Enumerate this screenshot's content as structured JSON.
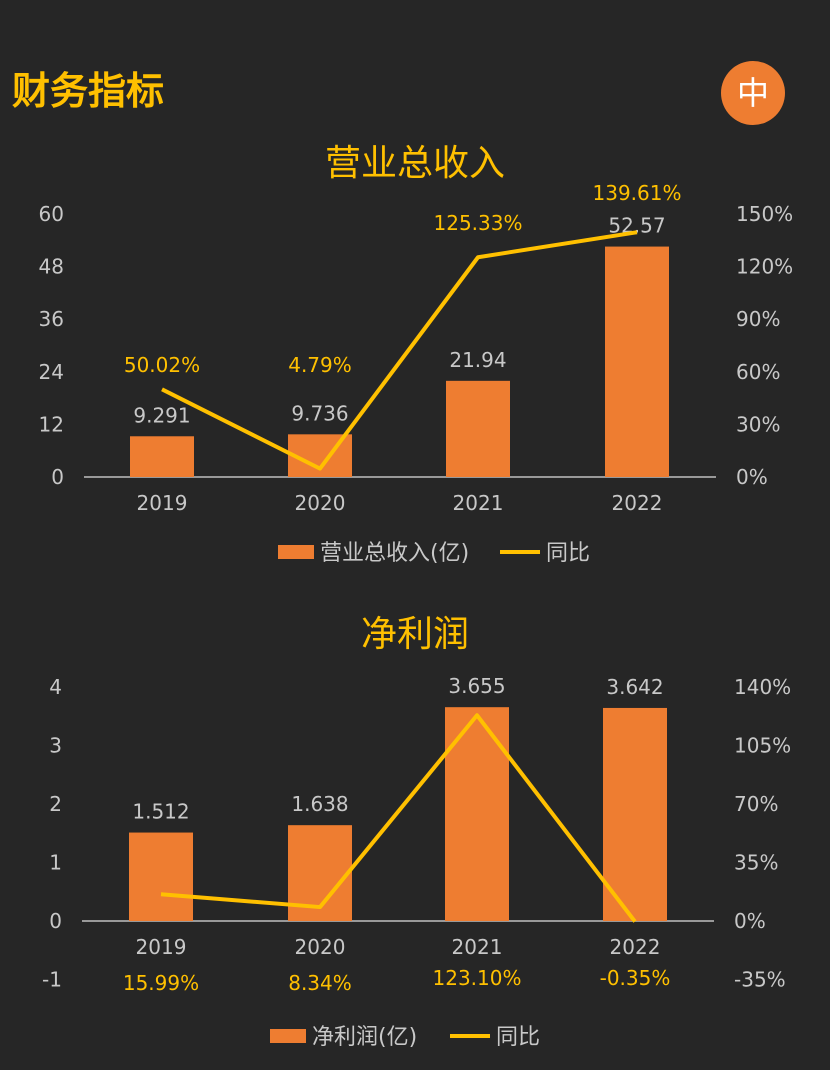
{
  "header": {
    "title": "财务指标",
    "badge": "中"
  },
  "colors": {
    "background": "#262626",
    "bar": "#ee7d31",
    "line": "#ffc000",
    "accent_title": "#ffc000",
    "text": "#c8c8c8"
  },
  "chart_data": [
    {
      "type": "bar",
      "title": "营业总收入",
      "categories": [
        "2019",
        "2020",
        "2021",
        "2022"
      ],
      "series": [
        {
          "name": "营业总收入(亿)",
          "type": "bar",
          "axis": "left",
          "values": [
            9.291,
            9.736,
            21.94,
            52.57
          ],
          "labels": [
            "9.291",
            "9.736",
            "21.94",
            "52.57"
          ]
        },
        {
          "name": "同比",
          "type": "line",
          "axis": "right",
          "values": [
            50.02,
            4.79,
            125.33,
            139.61
          ],
          "labels": [
            "50.02%",
            "4.79%",
            "125.33%",
            "139.61%"
          ]
        }
      ],
      "left_axis": {
        "ylim": [
          0,
          60
        ],
        "ticks": [
          "0",
          "12",
          "24",
          "36",
          "48",
          "60"
        ]
      },
      "right_axis": {
        "ylim": [
          0,
          150
        ],
        "ticks": [
          "0%",
          "30%",
          "60%",
          "90%",
          "120%",
          "150%"
        ]
      },
      "legend": "bottom"
    },
    {
      "type": "bar",
      "title": "净利润",
      "categories": [
        "2019",
        "2020",
        "2021",
        "2022"
      ],
      "series": [
        {
          "name": "净利润(亿)",
          "type": "bar",
          "axis": "left",
          "values": [
            1.512,
            1.638,
            3.655,
            3.642
          ],
          "labels": [
            "1.512",
            "1.638",
            "3.655",
            "3.642"
          ]
        },
        {
          "name": "同比",
          "type": "line",
          "axis": "right",
          "values": [
            15.99,
            8.34,
            123.1,
            -0.35
          ],
          "labels": [
            "15.99%",
            "8.34%",
            "123.10%",
            "-0.35%"
          ]
        }
      ],
      "left_axis": {
        "ylim": [
          -1,
          4
        ],
        "ticks": [
          "-1",
          "0",
          "1",
          "2",
          "3",
          "4"
        ]
      },
      "right_axis": {
        "ylim": [
          -35,
          140
        ],
        "ticks": [
          "-35%",
          "0%",
          "35%",
          "70%",
          "105%",
          "140%"
        ]
      },
      "legend": "bottom"
    }
  ]
}
